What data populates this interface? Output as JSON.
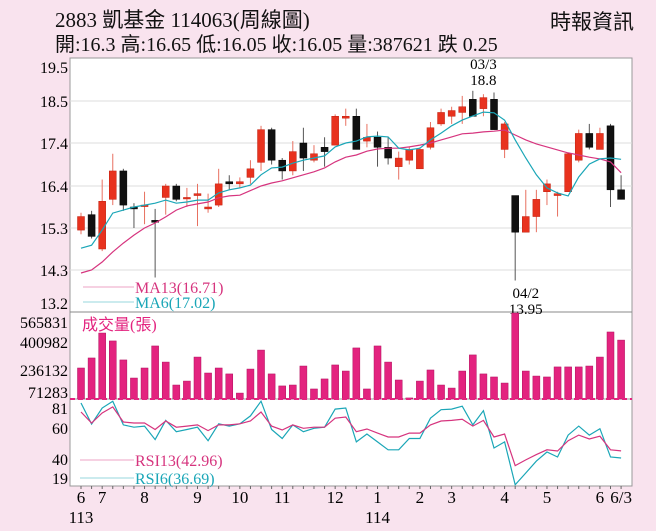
{
  "header": {
    "title": "2883  凱基金 114063(周線圖)",
    "brand": "時報資訊",
    "quote": "開:16.3 高:16.65 低:16.05 收:16.05 量:387621 跌 0.25"
  },
  "colors": {
    "up": "#e8321e",
    "down": "#111111",
    "ma13": "#d6347e",
    "ma6": "#1aa6b7",
    "volume": "#e3237f",
    "rsi13": "#d6347e",
    "rsi6": "#1aa6b7"
  },
  "chart_data": [
    {
      "type": "candlestick",
      "panel": "price",
      "y_ticks": [
        "19.5",
        "18.5",
        "17.4",
        "16.4",
        "15.3",
        "14.3",
        "13.2"
      ],
      "ylim": [
        13.2,
        19.5
      ],
      "grid": true,
      "annotations": [
        {
          "label_date": "03/3",
          "label_value": "18.8",
          "candle": 38
        },
        {
          "label_date": "04/2",
          "label_value": "13.95",
          "candle": 42
        }
      ],
      "legend": [
        {
          "text": "MA13(16.71)",
          "series": "ma13"
        },
        {
          "text": "MA6(17.02)",
          "series": "ma6"
        }
      ],
      "ohlc_fields": [
        "open",
        "high",
        "low",
        "close"
      ],
      "candles": [
        [
          15.25,
          15.7,
          15.15,
          15.6
        ],
        [
          15.65,
          15.75,
          15.05,
          15.1
        ],
        [
          14.8,
          16.55,
          14.75,
          16.0
        ],
        [
          16.05,
          17.15,
          15.9,
          16.75
        ],
        [
          16.75,
          16.8,
          15.75,
          15.9
        ],
        [
          15.85,
          15.95,
          15.3,
          15.8
        ],
        [
          15.9,
          16.25,
          15.4,
          15.9
        ],
        [
          15.5,
          15.8,
          14.05,
          15.45
        ],
        [
          16.1,
          16.45,
          15.65,
          16.4
        ],
        [
          16.4,
          16.45,
          16.0,
          16.05
        ],
        [
          16.1,
          16.35,
          15.85,
          16.1
        ],
        [
          16.15,
          16.45,
          15.35,
          16.2
        ],
        [
          15.8,
          16.2,
          15.7,
          15.85
        ],
        [
          15.9,
          16.8,
          15.85,
          16.45
        ],
        [
          16.5,
          16.65,
          16.3,
          16.45
        ],
        [
          16.45,
          16.6,
          16.35,
          16.5
        ],
        [
          16.6,
          17.0,
          16.45,
          16.8
        ],
        [
          16.95,
          17.85,
          16.75,
          17.75
        ],
        [
          17.75,
          17.8,
          16.9,
          17.0
        ],
        [
          17.0,
          17.05,
          16.55,
          16.75
        ],
        [
          16.75,
          17.45,
          16.65,
          17.2
        ],
        [
          17.4,
          17.8,
          16.75,
          17.05
        ],
        [
          17.0,
          17.35,
          16.95,
          17.15
        ],
        [
          17.3,
          17.55,
          16.85,
          17.2
        ],
        [
          17.35,
          18.15,
          17.35,
          18.1
        ],
        [
          18.05,
          18.3,
          17.85,
          18.1
        ],
        [
          18.1,
          18.3,
          17.25,
          17.25
        ],
        [
          17.45,
          17.9,
          17.3,
          17.55
        ],
        [
          17.55,
          17.7,
          16.85,
          17.3
        ],
        [
          17.3,
          17.55,
          16.9,
          17.05
        ],
        [
          16.85,
          17.2,
          16.55,
          17.05
        ],
        [
          17.0,
          17.3,
          16.9,
          17.25
        ],
        [
          16.8,
          17.3,
          16.8,
          17.25
        ],
        [
          17.3,
          17.95,
          17.25,
          17.8
        ],
        [
          17.9,
          18.3,
          17.85,
          18.2
        ],
        [
          18.1,
          18.35,
          17.9,
          18.25
        ],
        [
          18.2,
          18.65,
          17.9,
          18.35
        ],
        [
          18.55,
          18.8,
          18.1,
          18.1
        ],
        [
          18.3,
          18.7,
          18.1,
          18.6
        ],
        [
          18.55,
          18.75,
          17.75,
          17.75
        ],
        [
          17.25,
          17.95,
          17.05,
          17.9
        ],
        [
          16.15,
          16.15,
          13.95,
          15.2
        ],
        [
          15.2,
          16.3,
          15.2,
          15.6
        ],
        [
          15.6,
          16.3,
          15.2,
          16.05
        ],
        [
          16.25,
          16.55,
          15.9,
          16.45
        ],
        [
          16.15,
          16.25,
          15.6,
          16.2
        ],
        [
          16.25,
          17.15,
          16.25,
          17.15
        ],
        [
          17.0,
          17.75,
          16.95,
          17.65
        ],
        [
          17.65,
          17.9,
          17.25,
          17.3
        ],
        [
          17.25,
          17.8,
          17.25,
          17.65
        ],
        [
          17.85,
          17.9,
          15.85,
          16.3
        ],
        [
          16.3,
          16.65,
          16.05,
          16.05
        ]
      ],
      "ma13": [
        14.2,
        14.3,
        14.49,
        14.73,
        14.94,
        15.13,
        15.3,
        15.43,
        15.59,
        15.77,
        15.88,
        15.93,
        15.98,
        16.09,
        16.14,
        16.16,
        16.28,
        16.4,
        16.47,
        16.52,
        16.59,
        16.66,
        16.73,
        16.82,
        16.96,
        17.07,
        17.12,
        17.21,
        17.26,
        17.28,
        17.28,
        17.31,
        17.35,
        17.4,
        17.48,
        17.56,
        17.64,
        17.66,
        17.69,
        17.71,
        17.74,
        17.61,
        17.48,
        17.38,
        17.31,
        17.24,
        17.17,
        17.12,
        17.07,
        17.03,
        16.96,
        16.71
      ],
      "ma6": [
        14.82,
        14.89,
        15.25,
        15.69,
        15.77,
        15.85,
        15.9,
        15.95,
        16.03,
        15.95,
        15.98,
        16.03,
        16.03,
        16.22,
        16.3,
        16.35,
        16.42,
        16.66,
        16.82,
        16.84,
        16.93,
        17.0,
        17.05,
        17.1,
        17.31,
        17.4,
        17.45,
        17.56,
        17.58,
        17.56,
        17.28,
        17.24,
        17.28,
        17.48,
        17.66,
        17.85,
        18.0,
        18.11,
        18.21,
        18.19,
        18.0,
        17.48,
        17.05,
        16.66,
        16.35,
        16.22,
        16.14,
        16.61,
        16.91,
        17.03,
        17.05,
        17.02
      ]
    },
    {
      "type": "bar",
      "panel": "volume",
      "title": "成交量(張)",
      "y_ticks": [
        "565831",
        "400982",
        "236132",
        "71283"
      ],
      "ylim": [
        0,
        565831
      ],
      "values": [
        204000,
        270000,
        434000,
        382000,
        257000,
        138000,
        204000,
        349000,
        243000,
        92000,
        118000,
        276000,
        171000,
        204000,
        165000,
        39000,
        197000,
        322000,
        165000,
        86000,
        92000,
        217000,
        66000,
        132000,
        224000,
        184000,
        336000,
        66000,
        349000,
        243000,
        125000,
        7000,
        118000,
        191000,
        92000,
        72000,
        184000,
        290000,
        165000,
        145000,
        105000,
        565831,
        184000,
        151000,
        145000,
        211000,
        211000,
        211000,
        217000,
        276000,
        441000,
        387621
      ]
    },
    {
      "type": "line",
      "panel": "rsi",
      "y_ticks": [
        "81",
        "60",
        "40",
        "19"
      ],
      "legend": [
        {
          "text": "RSI13(42.96)",
          "series": "rsi13"
        },
        {
          "text": "RSI6(36.69)",
          "series": "rsi6"
        }
      ],
      "rsi13": [
        77.5,
        67.7,
        76.6,
        82,
        68.6,
        67.7,
        67.7,
        62,
        69.5,
        64,
        65,
        66,
        61,
        66,
        66,
        67,
        69.5,
        77.5,
        65,
        61.5,
        66,
        63,
        64,
        64,
        72,
        73,
        60,
        62.4,
        58.8,
        55.3,
        55.3,
        58.8,
        58.8,
        66,
        69.5,
        70,
        71,
        65,
        70,
        55.3,
        58,
        30,
        35,
        39.7,
        44,
        42.9,
        52,
        57,
        53.5,
        56,
        44,
        42.96
      ],
      "rsi6": [
        85.4,
        66.8,
        81,
        87,
        66,
        64,
        65,
        53,
        70,
        60,
        62,
        64,
        52,
        67,
        65,
        67,
        74,
        87,
        62,
        54,
        66,
        60,
        63,
        64,
        80,
        81,
        51,
        58,
        51,
        44,
        44,
        54,
        54,
        72,
        79.5,
        80,
        82.6,
        66,
        78.6,
        45.6,
        51,
        13,
        23.4,
        34,
        42,
        37.6,
        57,
        65,
        57,
        62.7,
        37.6,
        36.69
      ]
    }
  ],
  "x_axis": {
    "labels": [
      {
        "text": "6",
        "candle": 0
      },
      {
        "text": "7",
        "candle": 2
      },
      {
        "text": "8",
        "candle": 6
      },
      {
        "text": "9",
        "candle": 11
      },
      {
        "text": "10",
        "candle": 15
      },
      {
        "text": "11",
        "candle": 19
      },
      {
        "text": "12",
        "candle": 24
      },
      {
        "text": "1",
        "candle": 28
      },
      {
        "text": "2",
        "candle": 32
      },
      {
        "text": "3",
        "candle": 35
      },
      {
        "text": "4",
        "candle": 40
      },
      {
        "text": "5",
        "candle": 44
      },
      {
        "text": "6",
        "candle": 49
      },
      {
        "text": "6/3",
        "candle": 51
      }
    ],
    "years": [
      {
        "text": "113",
        "candle": 0
      },
      {
        "text": "114",
        "candle": 28
      }
    ]
  }
}
